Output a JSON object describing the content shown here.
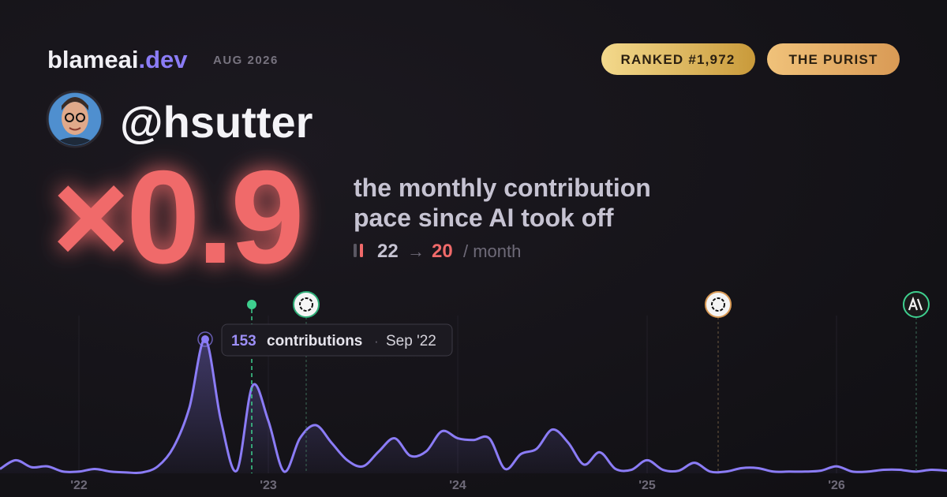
{
  "header": {
    "brand": "blameai",
    "brand_suffix": ".dev",
    "date": "AUG 2026",
    "badges": [
      "RANKED #1,972",
      "THE PURIST"
    ]
  },
  "profile": {
    "handle": "@hsutter"
  },
  "stat": {
    "multiplier": "×0.9",
    "description": [
      "the monthly contribution",
      "pace since AI took off"
    ],
    "before": "22",
    "arrow": "→",
    "after": "20",
    "unit": "/ month"
  },
  "chart_data": {
    "type": "line",
    "color": "#8b7cf6",
    "categories": [
      null,
      null,
      null,
      null,
      null,
      "'22",
      null,
      null,
      null,
      null,
      null,
      null,
      null,
      null,
      null,
      null,
      null,
      "'23",
      null,
      null,
      null,
      null,
      null,
      null,
      null,
      null,
      null,
      null,
      null,
      "'24",
      null,
      null,
      null,
      null,
      null,
      null,
      null,
      null,
      null,
      null,
      null,
      "'25",
      null,
      null,
      null,
      null,
      null,
      null,
      null,
      null,
      null,
      null,
      null,
      "'26",
      null,
      null,
      null,
      null,
      null,
      null,
      null
    ],
    "values": [
      5,
      15,
      7,
      8,
      2,
      2,
      5,
      2,
      1,
      1,
      8,
      30,
      75,
      153,
      60,
      3,
      100,
      60,
      2,
      40,
      55,
      35,
      15,
      8,
      25,
      40,
      20,
      25,
      48,
      40,
      38,
      40,
      5,
      22,
      28,
      50,
      35,
      10,
      24,
      5,
      4,
      15,
      4,
      3,
      12,
      2,
      2,
      6,
      6,
      2,
      2,
      2,
      3,
      8,
      2,
      2,
      4,
      4,
      2,
      4,
      3
    ],
    "ylim": [
      0,
      180
    ],
    "grid": true,
    "annotation": {
      "value": "153",
      "unit": "contributions",
      "separator": "·",
      "date": "Sep '22"
    }
  }
}
